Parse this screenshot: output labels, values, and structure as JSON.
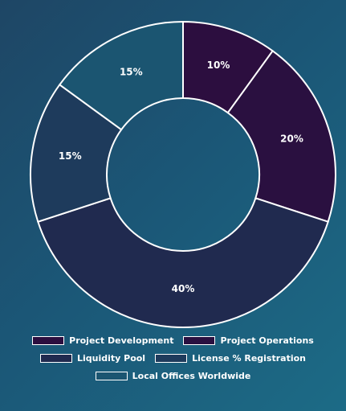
{
  "chart_data": {
    "type": "pie",
    "donut": true,
    "categories": [
      "Project Development",
      "Project Operations",
      "Liquidity Pool",
      "License % Registration",
      "Local Offices Worldwide"
    ],
    "values": [
      10,
      20,
      40,
      15,
      15
    ],
    "labels": [
      "10%",
      "20%",
      "40%",
      "15%",
      "15%"
    ],
    "colors": [
      "#2c0e3f",
      "#2a1040",
      "#202a4f",
      "#1e3b5c",
      "#1b5571"
    ],
    "slice_stroke": "#ffffff",
    "legend": {
      "placement": "bottom",
      "rows": [
        [
          0,
          1
        ],
        [
          2,
          3
        ],
        [
          4
        ]
      ]
    }
  }
}
